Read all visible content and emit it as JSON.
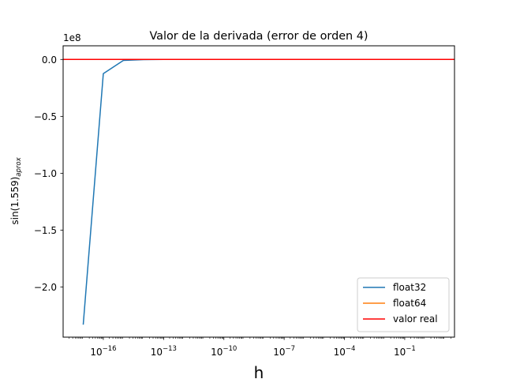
{
  "chart_data": {
    "type": "line",
    "title": "Valor de la derivada (error de orden 4)",
    "xlabel": "h",
    "ylabel": "sin(1.559)",
    "ylabel_subscript": "aprox",
    "x_scale": "log",
    "xlim": [
      1e-18,
      30
    ],
    "ylim": [
      -244000000,
      12000000
    ],
    "offset_label": "1e8",
    "x_ticks": [
      1e-16,
      1e-13,
      1e-10,
      1e-07,
      0.0001,
      0.1
    ],
    "x_tick_labels": [
      {
        "base": "10",
        "exp": "−16"
      },
      {
        "base": "10",
        "exp": "−13"
      },
      {
        "base": "10",
        "exp": "−10"
      },
      {
        "base": "10",
        "exp": "−7"
      },
      {
        "base": "10",
        "exp": "−4"
      },
      {
        "base": "10",
        "exp": "−1"
      }
    ],
    "y_ticks": [
      0,
      -50000000,
      -100000000,
      -150000000,
      -200000000
    ],
    "y_tick_labels": [
      "0.0",
      "−0.5",
      "−1.0",
      "−1.5",
      "−2.0"
    ],
    "grid": false,
    "legend_position": "lower-right",
    "series": [
      {
        "name": "float32",
        "color": "#1f77b4",
        "x": [
          1e-17,
          1e-16,
          1e-15,
          1e-14,
          1e-13,
          1e-12,
          1e-11,
          1e-10,
          1e-09,
          1e-08,
          1e-07,
          1e-06,
          1e-05,
          0.0001,
          0.001,
          0.01,
          0.1,
          1
        ],
        "y": [
          -233000000,
          -12500000,
          -800000,
          -100000,
          0,
          0,
          0,
          0,
          0,
          0,
          0,
          0,
          0,
          0,
          0,
          0,
          0,
          0
        ]
      },
      {
        "name": "float64",
        "color": "#ff7f0e",
        "x": [
          1e-17,
          1e-16,
          1e-15,
          1e-14,
          1e-13,
          1e-12,
          1e-11,
          1e-10,
          1e-09,
          1e-08,
          1e-07,
          1e-06,
          1e-05,
          0.0001,
          0.001,
          0.01,
          0.1,
          1
        ],
        "y": [
          0,
          0,
          0,
          0,
          0,
          0,
          0,
          0,
          0,
          0,
          0,
          0,
          0,
          0,
          0,
          0,
          0,
          0
        ]
      },
      {
        "name": "valor real",
        "color": "#ff0000",
        "type": "hline",
        "y": 0
      }
    ]
  }
}
